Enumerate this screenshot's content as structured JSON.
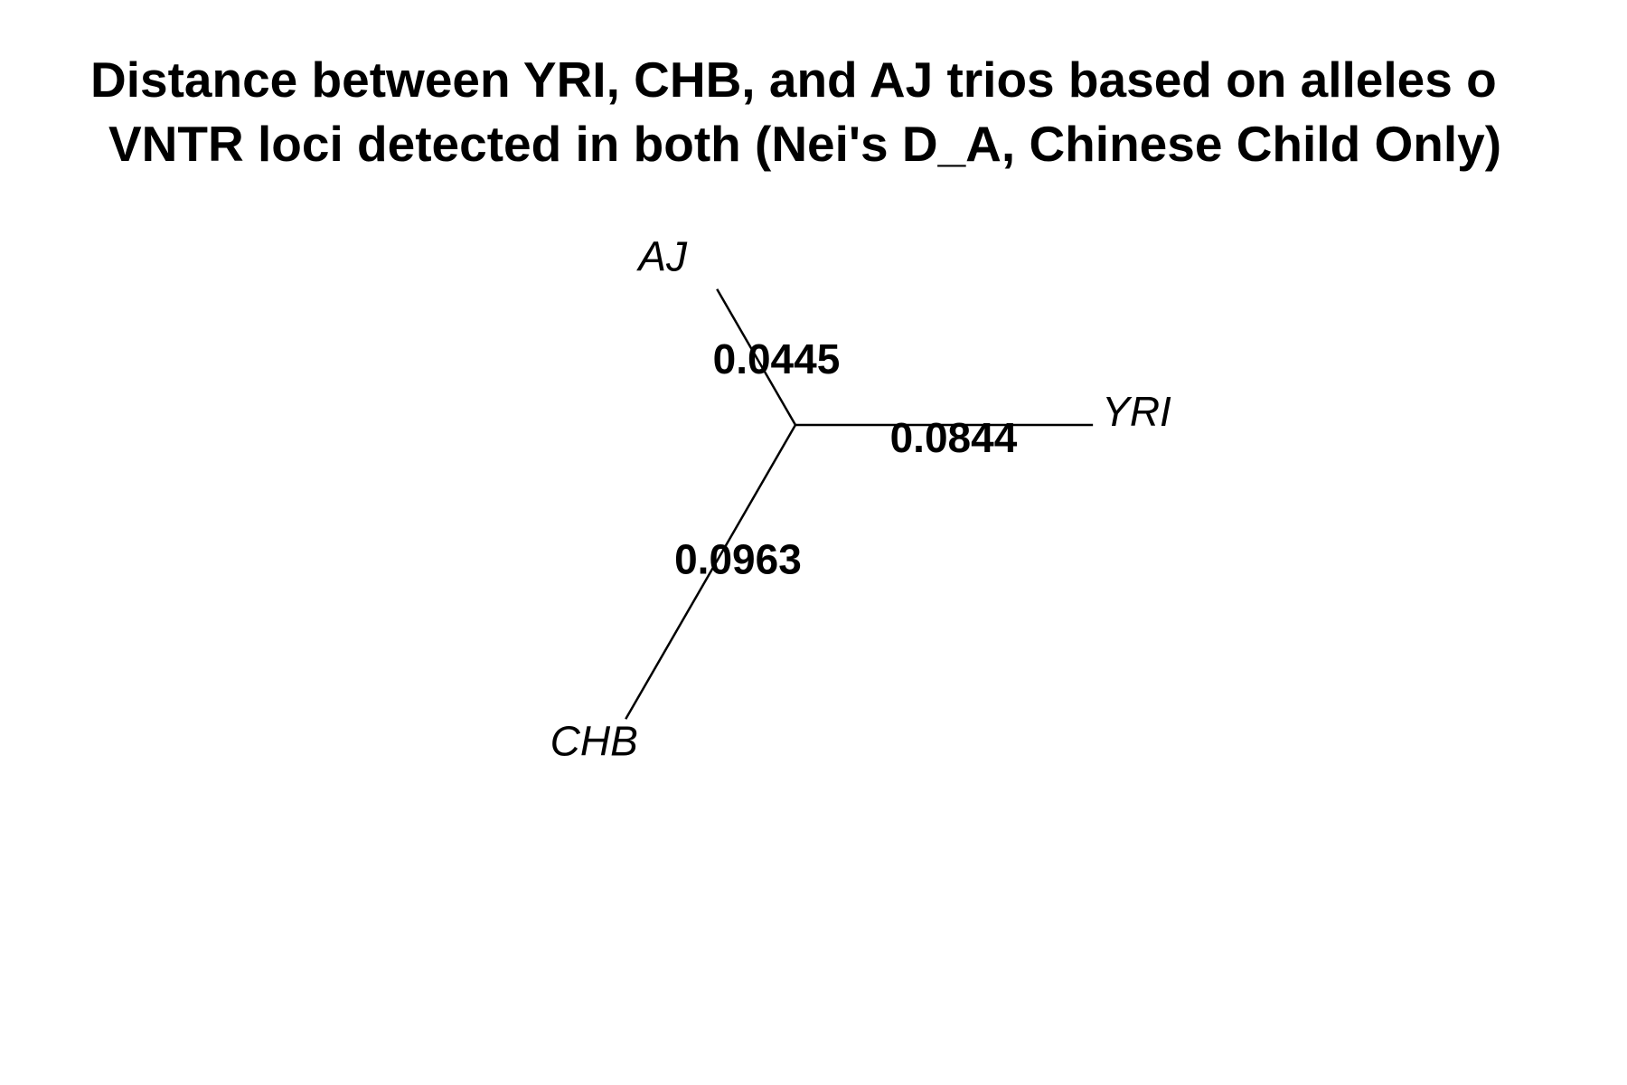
{
  "title": {
    "line1": "Distance between YRI, CHB, and AJ trios based on alleles o",
    "line2": "VNTR loci detected in both (Nei's D_A, Chinese Child Only)"
  },
  "tree": {
    "type": "unrooted",
    "branches": [
      {
        "tip": "AJ",
        "length": 0.0445,
        "label": "0.0445"
      },
      {
        "tip": "YRI",
        "length": 0.0844,
        "label": "0.0844"
      },
      {
        "tip": "CHB",
        "length": 0.0963,
        "label": "0.0963"
      }
    ]
  }
}
